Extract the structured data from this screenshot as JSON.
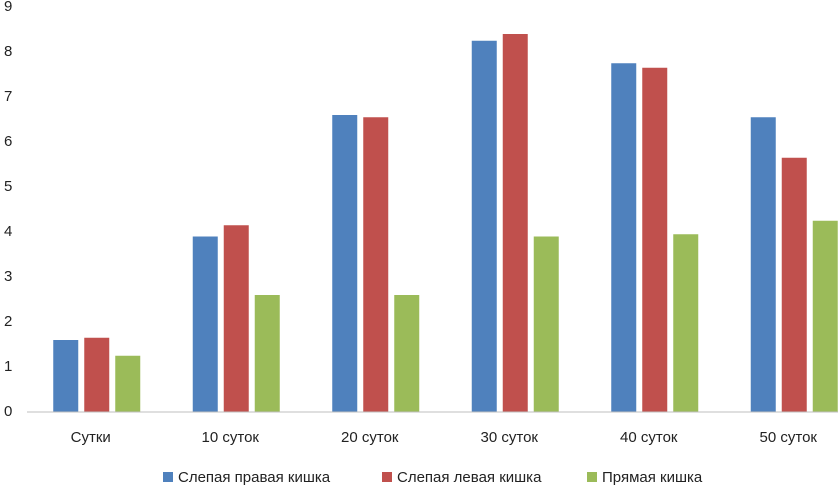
{
  "chart_data": {
    "type": "bar",
    "categories": [
      "Сутки",
      "10 суток",
      "20 суток",
      "30 суток",
      "40 суток",
      "50 суток"
    ],
    "series": [
      {
        "name": "Слепая правая кишка",
        "color": "#4f81bd",
        "values": [
          1.6,
          3.9,
          6.6,
          8.25,
          7.75,
          6.55
        ]
      },
      {
        "name": "Слепая левая кишка",
        "color": "#c0504d",
        "values": [
          1.65,
          4.15,
          6.55,
          8.4,
          7.65,
          5.65
        ]
      },
      {
        "name": "Прямая кишка",
        "color": "#9bbb59",
        "values": [
          1.25,
          2.6,
          2.6,
          3.9,
          3.95,
          4.25
        ]
      }
    ],
    "ylim": [
      0,
      9
    ],
    "yticks": [
      0,
      1,
      2,
      3,
      4,
      5,
      6,
      7,
      8,
      9
    ],
    "grid": false,
    "legend": "bottom"
  }
}
